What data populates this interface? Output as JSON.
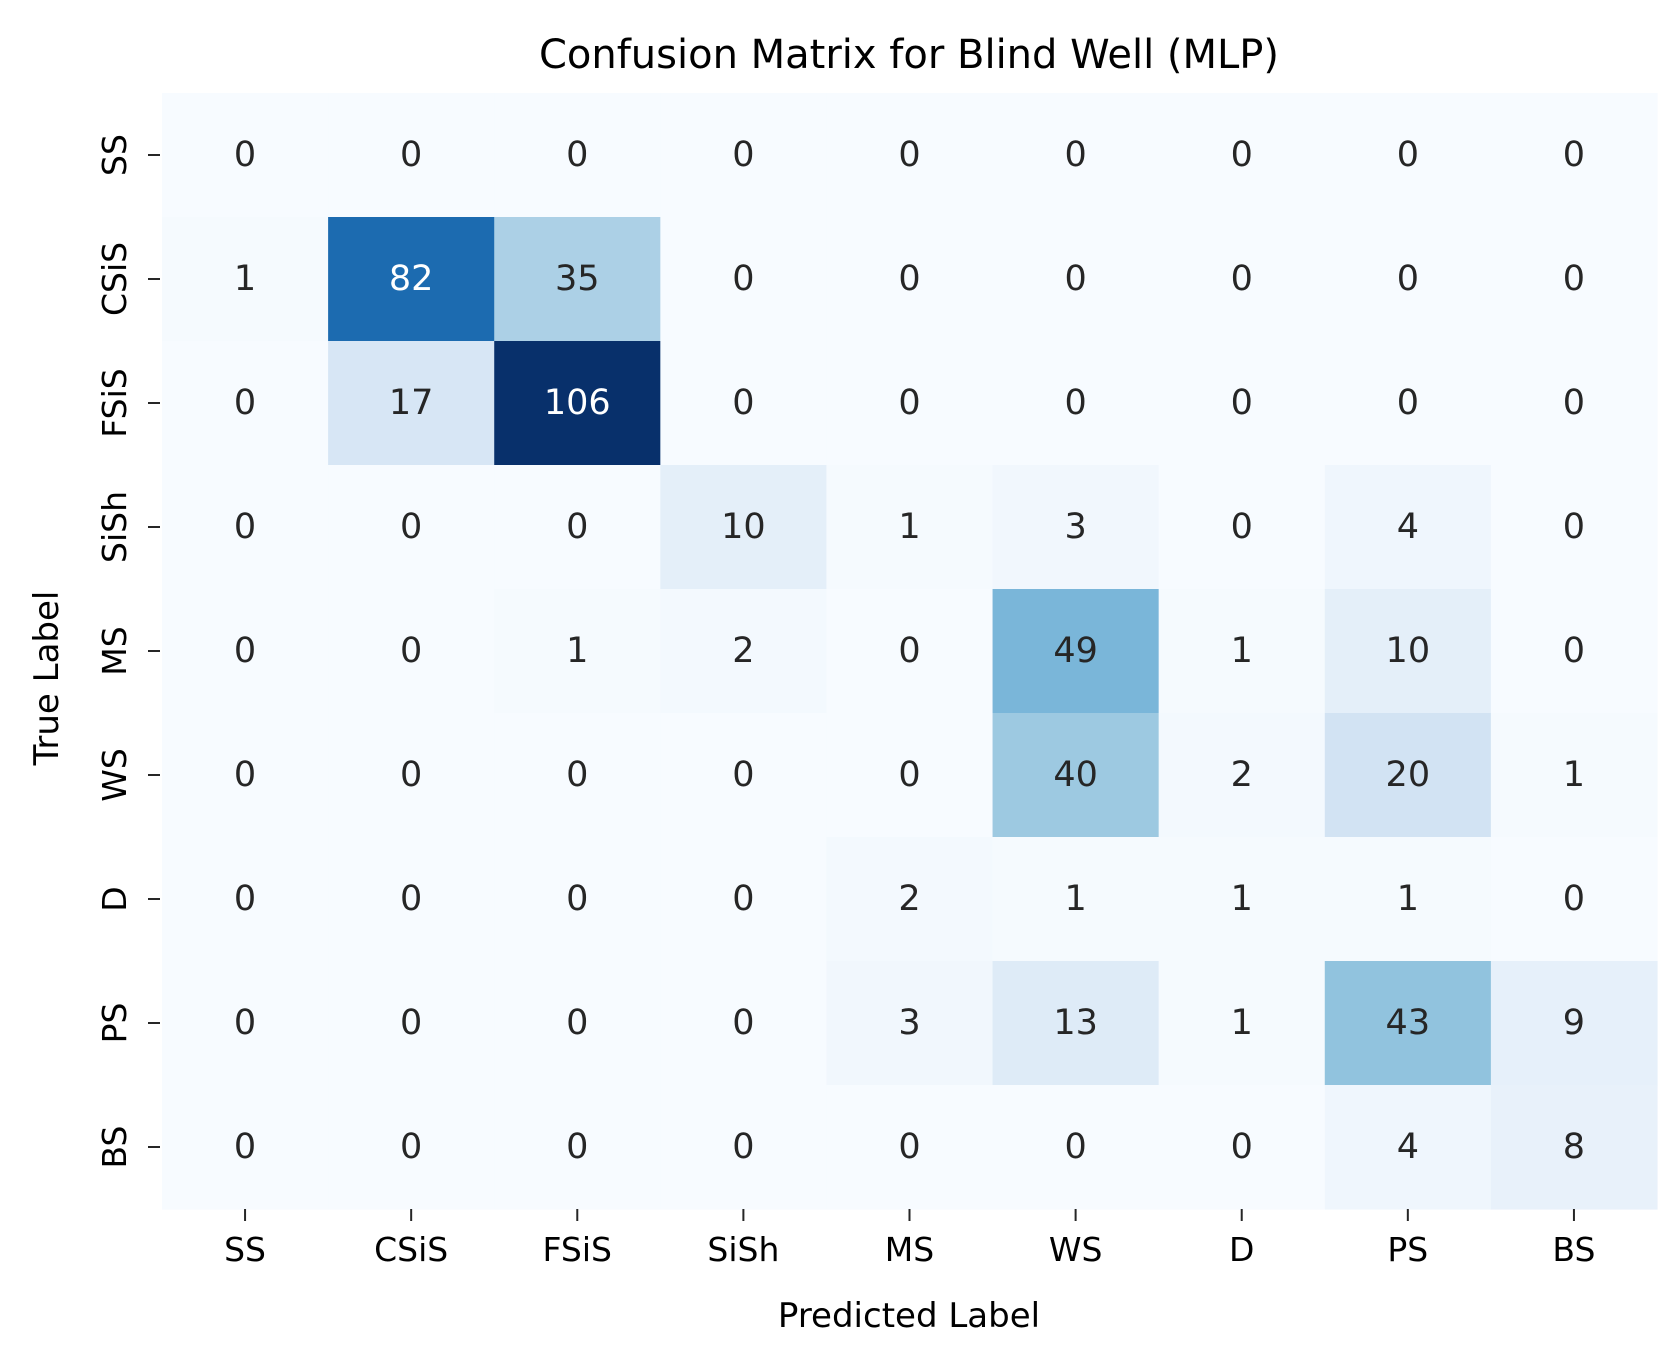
{
  "chart_data": {
    "type": "heatmap",
    "title": "Confusion Matrix for Blind Well (MLP)",
    "xlabel": "Predicted Label",
    "ylabel": "True Label",
    "x_categories": [
      "SS",
      "CSiS",
      "FSiS",
      "SiSh",
      "MS",
      "WS",
      "D",
      "PS",
      "BS"
    ],
    "y_categories": [
      "SS",
      "CSiS",
      "FSiS",
      "SiSh",
      "MS",
      "WS",
      "D",
      "PS",
      "BS"
    ],
    "values": [
      [
        0,
        0,
        0,
        0,
        0,
        0,
        0,
        0,
        0
      ],
      [
        1,
        82,
        35,
        0,
        0,
        0,
        0,
        0,
        0
      ],
      [
        0,
        17,
        106,
        0,
        0,
        0,
        0,
        0,
        0
      ],
      [
        0,
        0,
        0,
        10,
        1,
        3,
        0,
        4,
        0
      ],
      [
        0,
        0,
        1,
        2,
        0,
        49,
        1,
        10,
        0
      ],
      [
        0,
        0,
        0,
        0,
        0,
        40,
        2,
        20,
        1
      ],
      [
        0,
        0,
        0,
        0,
        2,
        1,
        1,
        1,
        0
      ],
      [
        0,
        0,
        0,
        0,
        3,
        13,
        1,
        43,
        9
      ],
      [
        0,
        0,
        0,
        0,
        0,
        0,
        0,
        4,
        8
      ]
    ],
    "colormap": "Blues",
    "color_range": [
      0,
      106
    ],
    "colorbar": false,
    "grid": false
  }
}
